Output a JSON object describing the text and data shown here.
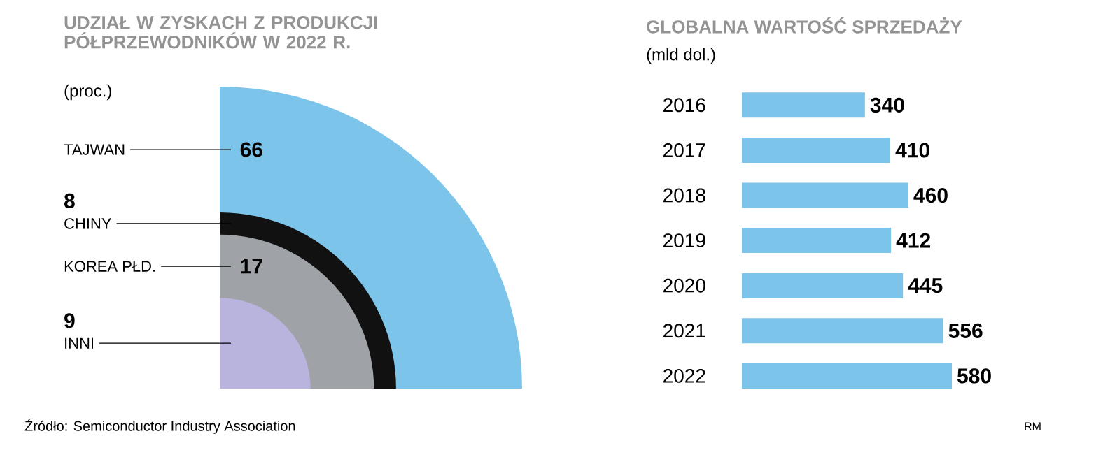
{
  "chart_data": [
    {
      "type": "other",
      "title": "UDZIAŁ W ZYSKACH Z PRODUKCJI PÓŁPRZEWODNIKÓW W 2022 R.",
      "subtitle": "(proc.)",
      "categories": [
        "TAJWAN",
        "CHINY",
        "KOREA PŁD.",
        "INNI"
      ],
      "values": [
        66,
        8,
        17,
        9
      ],
      "colors": [
        "#7dc4ea",
        "#111111",
        "#9fa3a7",
        "#b9b4dd"
      ],
      "data_labels": true,
      "annotations": [
        "Źródło: Semiconductor Industry Association"
      ]
    },
    {
      "type": "bar",
      "orientation": "horizontal",
      "title": "GLOBALNA WARTOŚĆ SPRZEDAŻY",
      "subtitle": "(mld dol.)",
      "categories": [
        "2016",
        "2017",
        "2018",
        "2019",
        "2020",
        "2021",
        "2022"
      ],
      "values": [
        340,
        410,
        460,
        412,
        445,
        556,
        580
      ],
      "color": "#7dc4ea",
      "tick_labels": "y",
      "data_labels": true,
      "annotations": [
        "RM"
      ]
    }
  ]
}
